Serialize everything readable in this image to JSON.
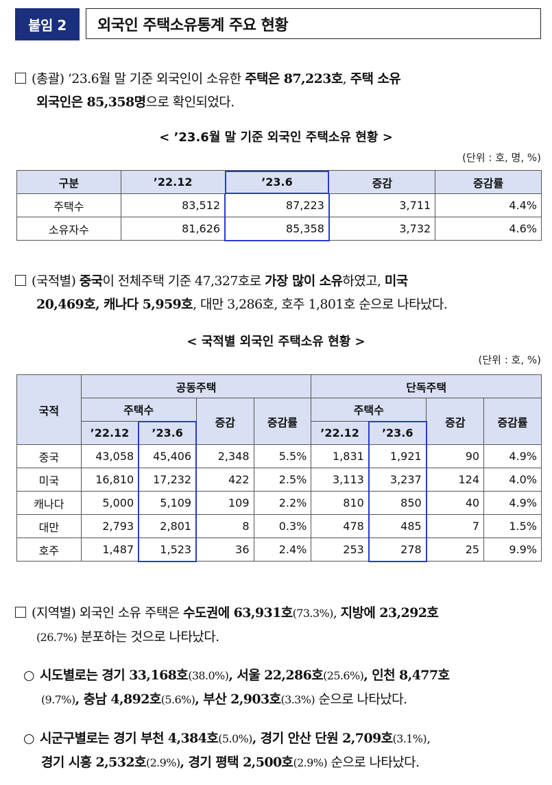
{
  "header": {
    "tag": "붙임 2",
    "title": "외국인 주택소유통계 주요 현황"
  },
  "para1": {
    "l1a": "(총괄) ’23.6월 말 기준 외국인이 소유한 ",
    "l1b": "주택은 87,223호",
    "l1c": ", ",
    "l1d": "주택 소유",
    "l2a": "외국인은 85,358명",
    "l2b": "으로 확인되었다."
  },
  "table1": {
    "title": "< ’23.6월 말 기준 외국인 주택소유 현황 >",
    "unit": "(단위 : 호, 명, %)",
    "headers": [
      "구분",
      "’22.12",
      "’23.6",
      "증감",
      "증감률"
    ],
    "rows": [
      [
        "주택수",
        "83,512",
        "87,223",
        "3,711",
        "4.4%"
      ],
      [
        "소유자수",
        "81,626",
        "85,358",
        "3,732",
        "4.6%"
      ]
    ]
  },
  "para2": {
    "l1a": "(국적별) ",
    "l1b": "중국",
    "l1c": "이 전체주택 기준 47,327호로 ",
    "l1d": "가장 많이 소유",
    "l1e": "하였고, ",
    "l1f": "미국",
    "l2a": "20,469호, ",
    "l2b": "캐나다 5,959호",
    "l2c": ", 대만 3,286호, 호주 1,801호 순으로 나타났다."
  },
  "table2": {
    "title": "< 국적별 외국인 주택소유 현황 >",
    "unit": "(단위 : 호, %)",
    "h_nat": "국적",
    "h_apt": "공동주택",
    "h_det": "단독주택",
    "h_count": "주택수",
    "h_diff": "증감",
    "h_rate": "증감률",
    "h_p1": "’22.12",
    "h_p2": "’23.6",
    "rows": [
      [
        "중국",
        "43,058",
        "45,406",
        "2,348",
        "5.5%",
        "1,831",
        "1,921",
        "90",
        "4.9%"
      ],
      [
        "미국",
        "16,810",
        "17,232",
        "422",
        "2.5%",
        "3,113",
        "3,237",
        "124",
        "4.0%"
      ],
      [
        "캐나다",
        "5,000",
        "5,109",
        "109",
        "2.2%",
        "810",
        "850",
        "40",
        "4.9%"
      ],
      [
        "대만",
        "2,793",
        "2,801",
        "8",
        "0.3%",
        "478",
        "485",
        "7",
        "1.5%"
      ],
      [
        "호주",
        "1,487",
        "1,523",
        "36",
        "2.4%",
        "253",
        "278",
        "25",
        "9.9%"
      ]
    ]
  },
  "para3": {
    "l1a": "(지역별) 외국인 소유 주택은 ",
    "l1b": "수도권",
    "l1c": "에 63,931호",
    "l1d": "(73.3%)",
    "l1e": ", ",
    "l1f": "지방",
    "l1g": "에 23,292호",
    "l2a": "(26.7%)",
    "l2b": " 분포하는 것으로 나타났다."
  },
  "bullet1": {
    "mark": "○",
    "l1a": "시도별로는 경기 33,168호",
    "l1b": "(38.0%)",
    "l1c": ", 서울 22,286호",
    "l1d": "(25.6%)",
    "l1e": ", 인천 8,477호",
    "l2a": "(9.7%)",
    "l2b": ", 충남 4,892호",
    "l2c": "(5.6%)",
    "l2d": ", 부산 2,903호",
    "l2e": "(3.3%)",
    "l2f": " 순으로 나타났다."
  },
  "bullet2": {
    "mark": "○",
    "l1a": "시군구별로는 경기 부천 4,384호",
    "l1b": "(5.0%)",
    "l1c": ", 경기 안산 단원 2,709호",
    "l1d": "(3.1%)",
    "l1e": ",",
    "l2a": "경기 시흥 2,532호",
    "l2b": "(2.9%)",
    "l2c": ", 경기 평택 2,500호",
    "l2d": "(2.9%)",
    "l2e": " 순으로 나타났다."
  }
}
